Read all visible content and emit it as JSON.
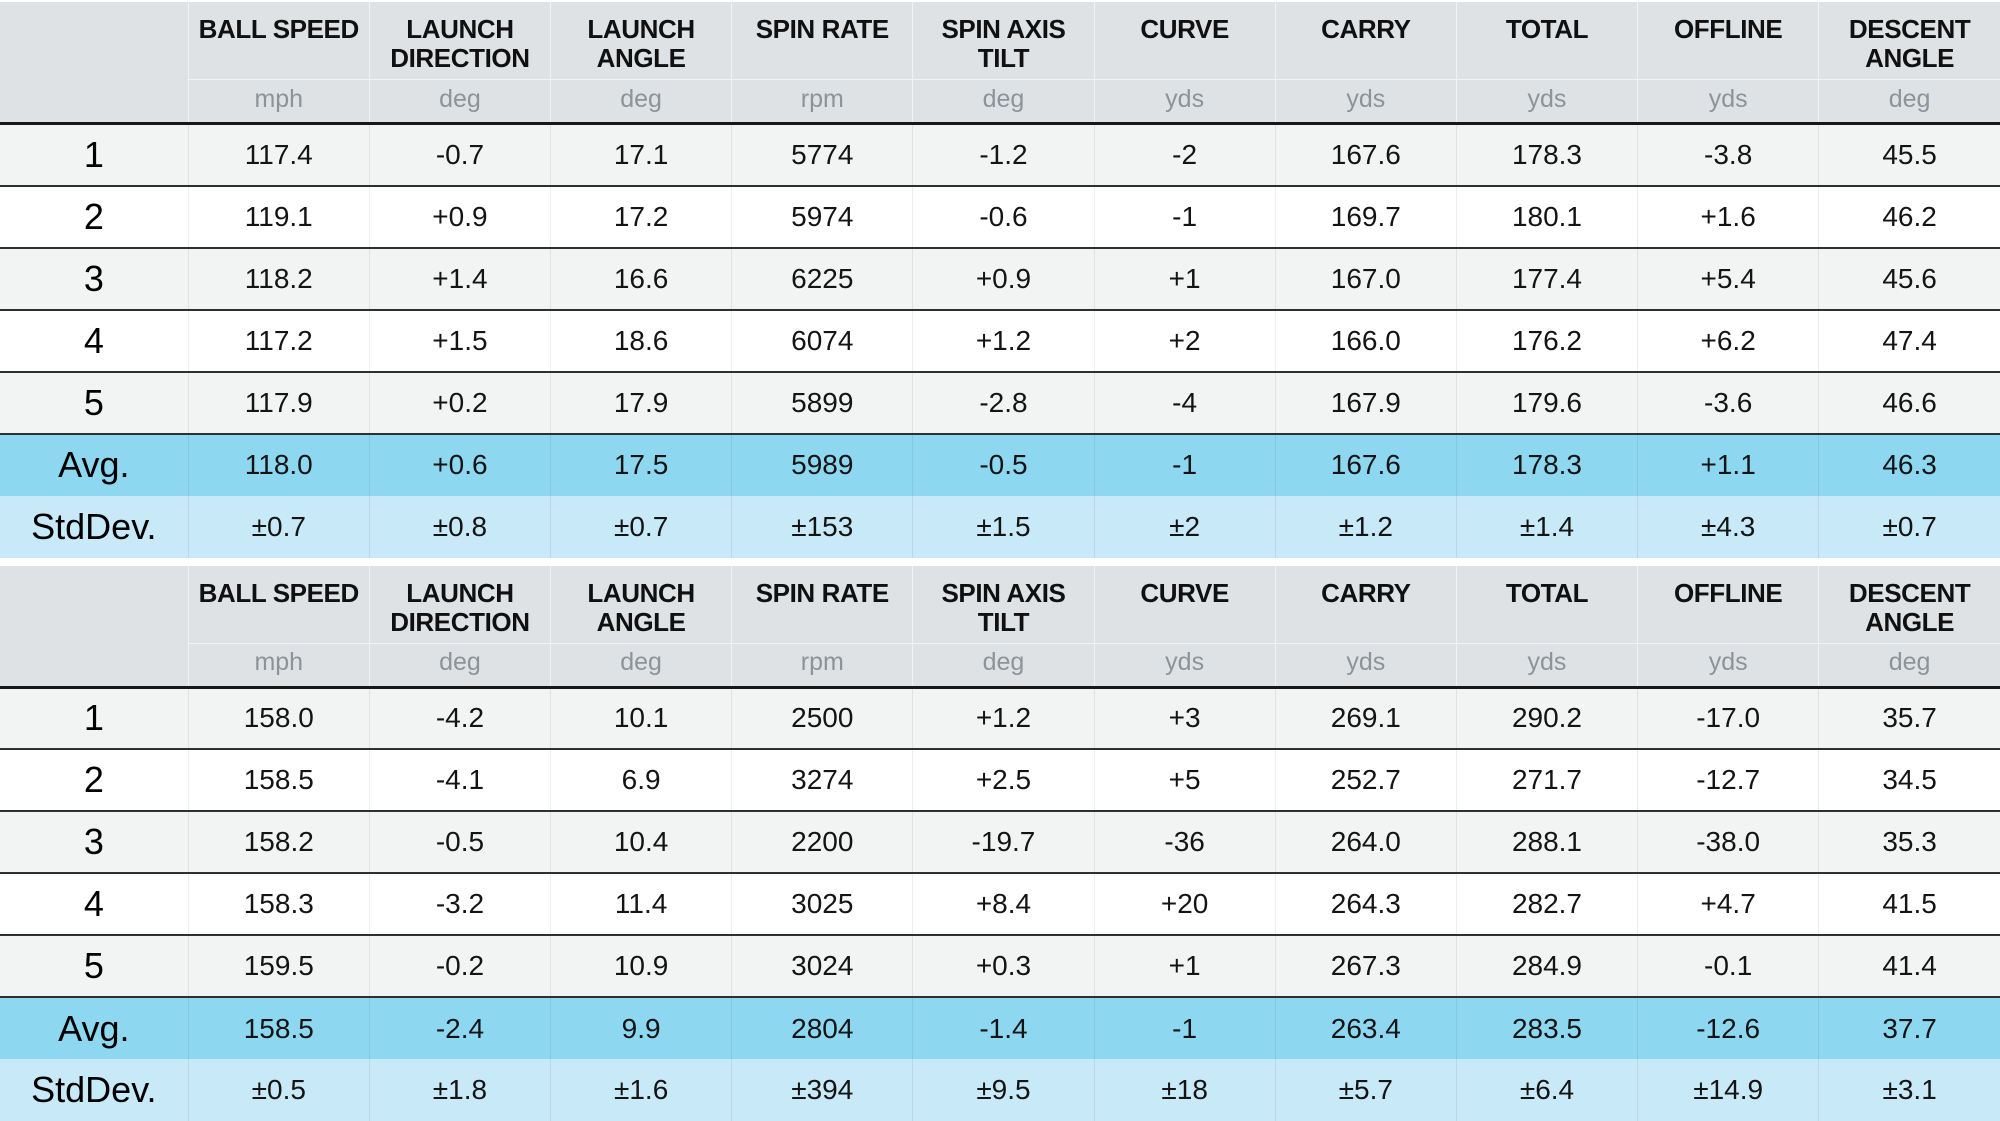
{
  "colors": {
    "header_bg": "#dee2e4",
    "unit_color": "#8d9399",
    "row_odd": "#f2f3f3",
    "row_even": "#ffffff",
    "avg_row": "#8dd7f1",
    "stddev_row": "#c8e9f8"
  },
  "chart_data": [
    {
      "type": "table",
      "title": "Shot data table 1 (iron)",
      "columns": [
        {
          "label": "BALL SPEED",
          "unit": "mph"
        },
        {
          "label": "LAUNCH DIRECTION",
          "unit": "deg"
        },
        {
          "label": "LAUNCH ANGLE",
          "unit": "deg"
        },
        {
          "label": "SPIN RATE",
          "unit": "rpm"
        },
        {
          "label": "SPIN AXIS TILT",
          "unit": "deg"
        },
        {
          "label": "CURVE",
          "unit": "yds"
        },
        {
          "label": "CARRY",
          "unit": "yds"
        },
        {
          "label": "TOTAL",
          "unit": "yds"
        },
        {
          "label": "OFFLINE",
          "unit": "yds"
        },
        {
          "label": "DESCENT ANGLE",
          "unit": "deg"
        }
      ],
      "rows": [
        {
          "label": "1",
          "kind": "shot",
          "values": [
            "117.4",
            "-0.7",
            "17.1",
            "5774",
            "-1.2",
            "-2",
            "167.6",
            "178.3",
            "-3.8",
            "45.5"
          ]
        },
        {
          "label": "2",
          "kind": "shot",
          "values": [
            "119.1",
            "+0.9",
            "17.2",
            "5974",
            "-0.6",
            "-1",
            "169.7",
            "180.1",
            "+1.6",
            "46.2"
          ]
        },
        {
          "label": "3",
          "kind": "shot",
          "values": [
            "118.2",
            "+1.4",
            "16.6",
            "6225",
            "+0.9",
            "+1",
            "167.0",
            "177.4",
            "+5.4",
            "45.6"
          ]
        },
        {
          "label": "4",
          "kind": "shot",
          "values": [
            "117.2",
            "+1.5",
            "18.6",
            "6074",
            "+1.2",
            "+2",
            "166.0",
            "176.2",
            "+6.2",
            "47.4"
          ]
        },
        {
          "label": "5",
          "kind": "shot",
          "values": [
            "117.9",
            "+0.2",
            "17.9",
            "5899",
            "-2.8",
            "-4",
            "167.9",
            "179.6",
            "-3.6",
            "46.6"
          ]
        },
        {
          "label": "Avg.",
          "kind": "avg",
          "values": [
            "118.0",
            "+0.6",
            "17.5",
            "5989",
            "-0.5",
            "-1",
            "167.6",
            "178.3",
            "+1.1",
            "46.3"
          ]
        },
        {
          "label": "StdDev.",
          "kind": "stddev",
          "values": [
            "±0.7",
            "±0.8",
            "±0.7",
            "±153",
            "±1.5",
            "±2",
            "±1.2",
            "±1.4",
            "±4.3",
            "±0.7"
          ]
        }
      ]
    },
    {
      "type": "table",
      "title": "Shot data table 2 (driver)",
      "columns": [
        {
          "label": "BALL SPEED",
          "unit": "mph"
        },
        {
          "label": "LAUNCH DIRECTION",
          "unit": "deg"
        },
        {
          "label": "LAUNCH ANGLE",
          "unit": "deg"
        },
        {
          "label": "SPIN RATE",
          "unit": "rpm"
        },
        {
          "label": "SPIN AXIS TILT",
          "unit": "deg"
        },
        {
          "label": "CURVE",
          "unit": "yds"
        },
        {
          "label": "CARRY",
          "unit": "yds"
        },
        {
          "label": "TOTAL",
          "unit": "yds"
        },
        {
          "label": "OFFLINE",
          "unit": "yds"
        },
        {
          "label": "DESCENT ANGLE",
          "unit": "deg"
        }
      ],
      "rows": [
        {
          "label": "1",
          "kind": "shot",
          "values": [
            "158.0",
            "-4.2",
            "10.1",
            "2500",
            "+1.2",
            "+3",
            "269.1",
            "290.2",
            "-17.0",
            "35.7"
          ]
        },
        {
          "label": "2",
          "kind": "shot",
          "values": [
            "158.5",
            "-4.1",
            "6.9",
            "3274",
            "+2.5",
            "+5",
            "252.7",
            "271.7",
            "-12.7",
            "34.5"
          ]
        },
        {
          "label": "3",
          "kind": "shot",
          "values": [
            "158.2",
            "-0.5",
            "10.4",
            "2200",
            "-19.7",
            "-36",
            "264.0",
            "288.1",
            "-38.0",
            "35.3"
          ]
        },
        {
          "label": "4",
          "kind": "shot",
          "values": [
            "158.3",
            "-3.2",
            "11.4",
            "3025",
            "+8.4",
            "+20",
            "264.3",
            "282.7",
            "+4.7",
            "41.5"
          ]
        },
        {
          "label": "5",
          "kind": "shot",
          "values": [
            "159.5",
            "-0.2",
            "10.9",
            "3024",
            "+0.3",
            "+1",
            "267.3",
            "284.9",
            "-0.1",
            "41.4"
          ]
        },
        {
          "label": "Avg.",
          "kind": "avg",
          "values": [
            "158.5",
            "-2.4",
            "9.9",
            "2804",
            "-1.4",
            "-1",
            "263.4",
            "283.5",
            "-12.6",
            "37.7"
          ]
        },
        {
          "label": "StdDev.",
          "kind": "stddev",
          "values": [
            "±0.5",
            "±1.8",
            "±1.6",
            "±394",
            "±9.5",
            "±18",
            "±5.7",
            "±6.4",
            "±14.9",
            "±3.1"
          ]
        }
      ]
    }
  ]
}
